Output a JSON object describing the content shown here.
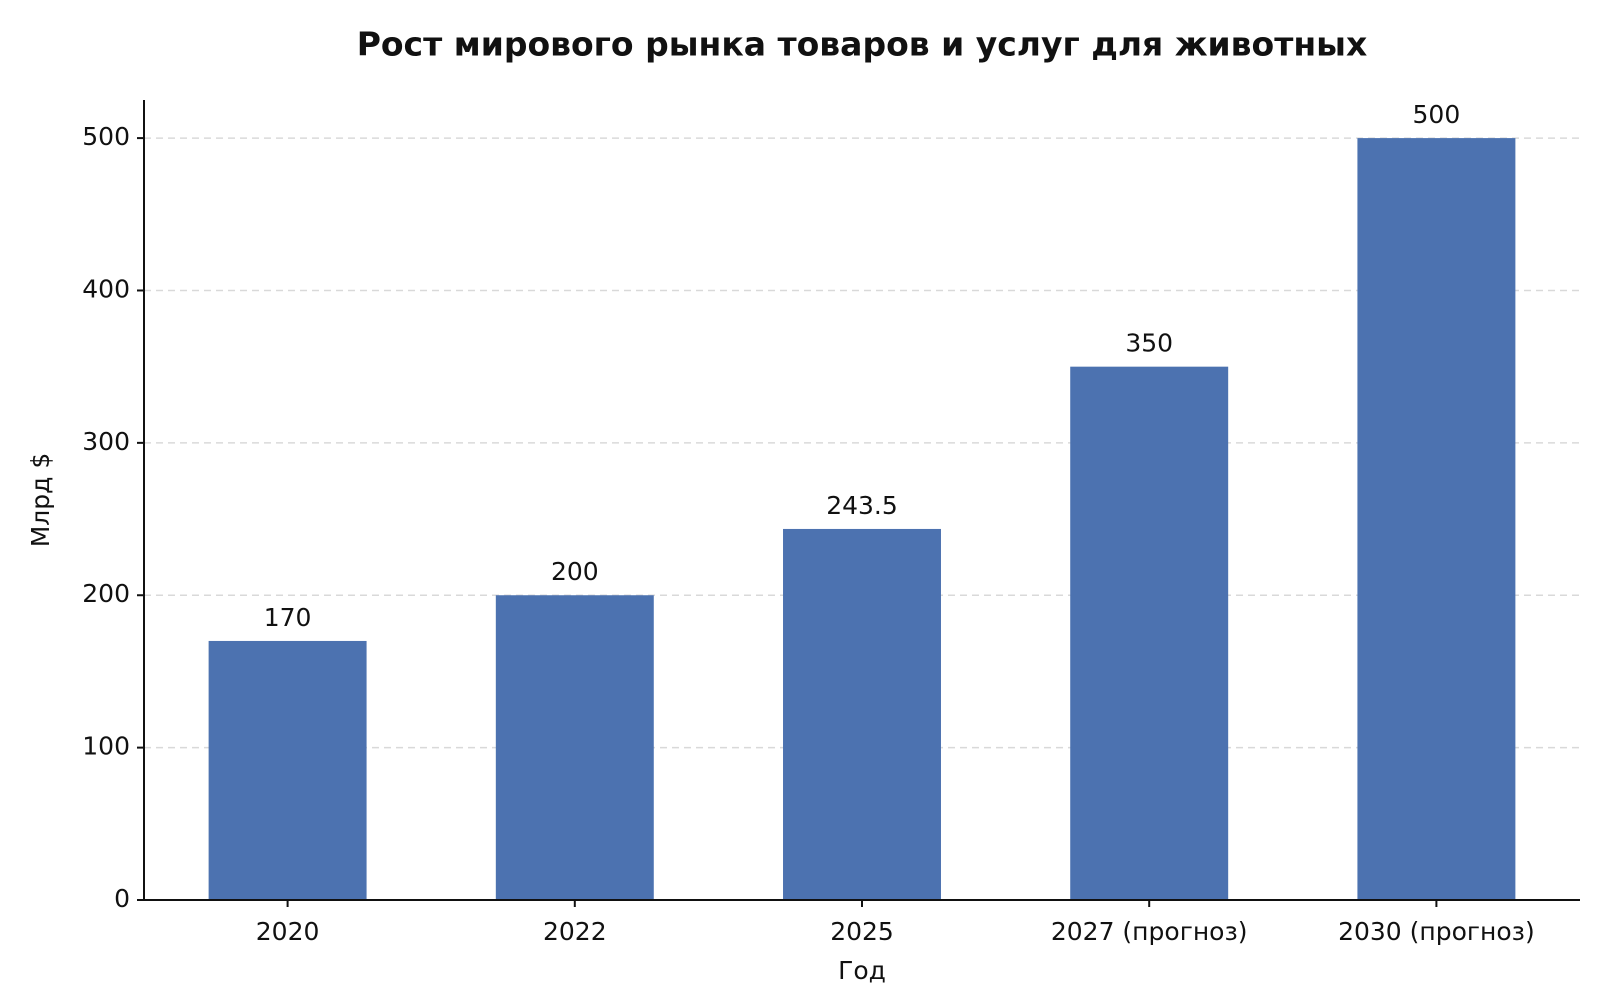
{
  "chart_data": {
    "type": "bar",
    "title": "Рост мирового рынка товаров и услуг для животных",
    "x_label": "Год",
    "y_label": "Млрд $",
    "categories": [
      "2020",
      "2022",
      "2025",
      "2027 (прогноз)",
      "2030 (прогноз)"
    ],
    "values": [
      170,
      200,
      243.5,
      350,
      500
    ],
    "color": "#4c72b0",
    "ylim": [
      0,
      525
    ],
    "yticks": [
      0,
      100,
      200,
      300,
      400,
      500
    ],
    "grid": true
  }
}
